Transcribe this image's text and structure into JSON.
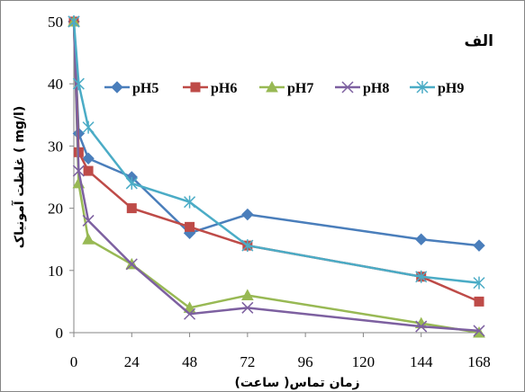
{
  "chart_data": {
    "type": "line",
    "panel_label": "الف",
    "xlabel": "زمان تماس( ساعت)",
    "ylabel": "غلظت آمونیاک ( mg/l)",
    "xlim": [
      0,
      168
    ],
    "ylim": [
      0,
      50
    ],
    "xticks": [
      0,
      24,
      48,
      72,
      96,
      120,
      144,
      168
    ],
    "yticks": [
      0,
      10,
      20,
      30,
      40,
      50
    ],
    "grid": false,
    "legend_position": "top",
    "series": [
      {
        "name": "pH5",
        "color": "#4a7ebb",
        "marker": "diamond",
        "x": [
          0,
          2,
          6,
          24,
          48,
          72,
          144,
          168
        ],
        "y": [
          50,
          32,
          28,
          25,
          16,
          19,
          15,
          14
        ]
      },
      {
        "name": "pH6",
        "color": "#be4b48",
        "marker": "square",
        "x": [
          0,
          2,
          6,
          24,
          48,
          72,
          144,
          168
        ],
        "y": [
          50,
          29,
          26,
          20,
          17,
          14,
          9,
          5
        ]
      },
      {
        "name": "pH7",
        "color": "#98b954",
        "marker": "triangle",
        "x": [
          0,
          2,
          6,
          24,
          48,
          72,
          144,
          168
        ],
        "y": [
          50,
          24,
          15,
          11,
          4,
          6,
          1.5,
          0
        ]
      },
      {
        "name": "pH8",
        "color": "#7d60a0",
        "marker": "x",
        "x": [
          0,
          2,
          6,
          24,
          48,
          72,
          144,
          168
        ],
        "y": [
          50,
          26,
          18,
          11,
          3,
          4,
          1,
          0.3
        ]
      },
      {
        "name": "pH9",
        "color": "#4bacc6",
        "marker": "star",
        "x": [
          0,
          2,
          6,
          24,
          48,
          72,
          144,
          168
        ],
        "y": [
          50,
          40,
          33,
          24,
          21,
          14,
          9,
          8
        ]
      }
    ]
  }
}
